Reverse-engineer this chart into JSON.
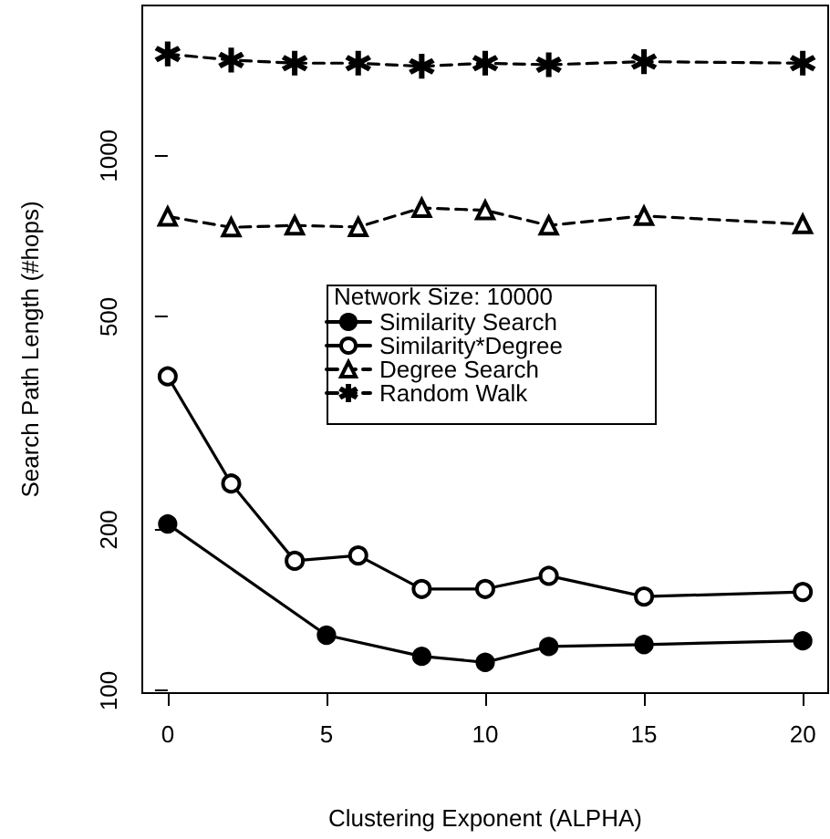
{
  "chart_data": {
    "type": "line",
    "xlabel": "Clustering Exponent (ALPHA)",
    "ylabel": "Search Path Length (#hops)",
    "legend_title": "Network Size: 10000",
    "legend": "center",
    "log": "y",
    "grid": false,
    "xlim": [
      -0.8,
      20.8
    ],
    "xticks": [
      0,
      5,
      10,
      15,
      20
    ],
    "ylim": [
      99,
      1910
    ],
    "yticks": [
      100,
      200,
      500,
      1000
    ],
    "series": [
      {
        "name": "Similarity Search",
        "color": "#000000",
        "marker": "circle",
        "line_style": "solid",
        "x": [
          0,
          5,
          8,
          10,
          12,
          15,
          20
        ],
        "values": [
          205,
          127,
          116,
          113,
          121,
          122,
          124
        ]
      },
      {
        "name": "Similarity*Degree",
        "color": "#000000",
        "marker": "open circle",
        "line_style": "solid",
        "x": [
          0,
          2,
          4,
          6,
          8,
          10,
          12,
          15,
          20
        ],
        "values": [
          387,
          244,
          175,
          179,
          155,
          155,
          164,
          150,
          153
        ]
      },
      {
        "name": "Degree Search",
        "color": "#000000",
        "marker": "triangle",
        "line_style": "dashed",
        "x": [
          0,
          2,
          4,
          6,
          8,
          10,
          12,
          15,
          20
        ],
        "values": [
          770,
          735,
          741,
          736,
          799,
          791,
          741,
          772,
          745
        ]
      },
      {
        "name": "Random Walk",
        "color": "#000000",
        "marker": "star",
        "line_style": "dashed",
        "x": [
          0,
          2,
          4,
          6,
          8,
          10,
          12,
          15,
          20
        ],
        "values": [
          1550,
          1510,
          1490,
          1490,
          1470,
          1490,
          1480,
          1500,
          1490
        ]
      }
    ]
  }
}
